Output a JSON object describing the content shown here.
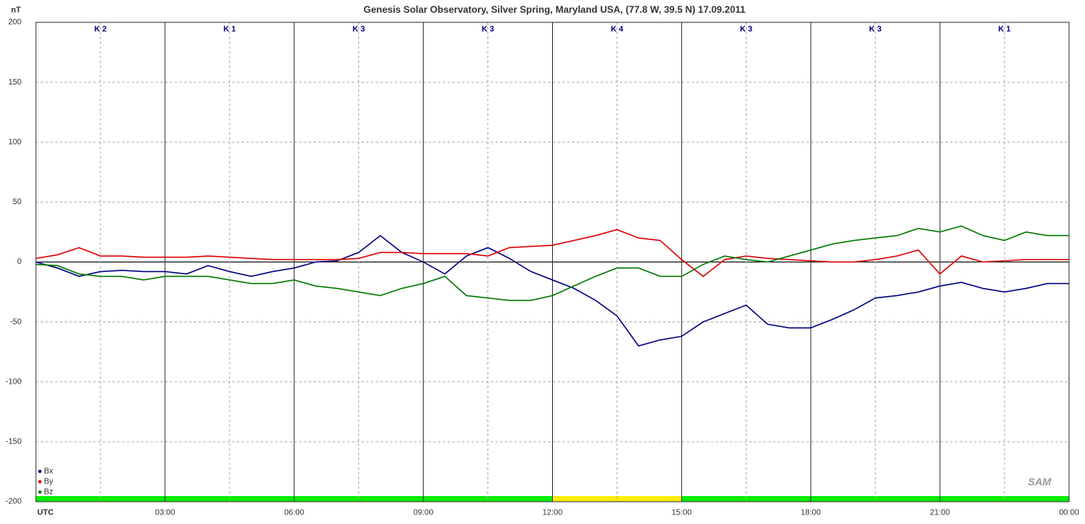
{
  "chart_data": {
    "type": "line",
    "title": "Genesis Solar Observatory, Silver Spring, Maryland USA, (77.8 W, 39.5 N)  17.09.2011",
    "y_label": "nT",
    "logo": "SAM",
    "xlim": [
      0,
      24
    ],
    "ylim": [
      -200,
      200
    ],
    "xticks": [
      {
        "value": 0,
        "label": "UTC"
      },
      {
        "value": 3,
        "label": "03:00"
      },
      {
        "value": 6,
        "label": "06:00"
      },
      {
        "value": 9,
        "label": "09:00"
      },
      {
        "value": 12,
        "label": "12:00"
      },
      {
        "value": 15,
        "label": "15:00"
      },
      {
        "value": 18,
        "label": "18:00"
      },
      {
        "value": 21,
        "label": "21:00"
      },
      {
        "value": 24,
        "label": "00:00"
      }
    ],
    "yticks": [
      200,
      150,
      100,
      50,
      0,
      -50,
      -100,
      -150,
      -200
    ],
    "grid": true,
    "legend": "lower left",
    "k_index": {
      "labels": [
        "K 2",
        "K 1",
        "K 3",
        "K 3",
        "K 4",
        "K 3",
        "K 3",
        "K 1"
      ],
      "colors": [
        "#00ee00",
        "#00ee00",
        "#00ee00",
        "#00ee00",
        "#ffee00",
        "#00ee00",
        "#00ee00",
        "#00ee00"
      ]
    },
    "x": [
      0,
      0.5,
      1,
      1.5,
      2,
      2.5,
      3,
      3.5,
      4,
      4.5,
      5,
      5.5,
      6,
      6.5,
      7,
      7.5,
      8,
      8.5,
      9,
      9.5,
      10,
      10.5,
      11,
      11.5,
      12,
      12.5,
      13,
      13.5,
      14,
      14.5,
      15,
      15.5,
      16,
      16.5,
      17,
      17.5,
      18,
      18.5,
      19,
      19.5,
      20,
      20.5,
      21,
      21.5,
      22,
      22.5,
      23,
      23.5,
      24
    ],
    "series": [
      {
        "name": "Bx",
        "color": "#000080",
        "values": [
          0,
          -5,
          -12,
          -8,
          -7,
          -8,
          -8,
          -10,
          -3,
          -8,
          -12,
          -8,
          -5,
          0,
          1,
          8,
          22,
          8,
          0,
          -10,
          5,
          12,
          3,
          -8,
          -15,
          -22,
          -32,
          -45,
          -70,
          -65,
          -62,
          -50,
          -43,
          -36,
          -52,
          -55,
          -55,
          -48,
          -40,
          -30,
          -28,
          -25,
          -20,
          -17,
          -22,
          -25,
          -22,
          -18,
          -18
        ]
      },
      {
        "name": "By",
        "color": "#dd0000",
        "values": [
          3,
          6,
          12,
          5,
          5,
          4,
          4,
          4,
          5,
          4,
          3,
          2,
          2,
          2,
          2,
          3,
          8,
          8,
          7,
          7,
          7,
          5,
          12,
          13,
          14,
          18,
          22,
          27,
          20,
          18,
          2,
          -12,
          2,
          5,
          3,
          2,
          1,
          0,
          0,
          2,
          5,
          10,
          -10,
          5,
          0,
          1,
          2,
          2,
          2
        ]
      },
      {
        "name": "Bz",
        "color": "#007700",
        "values": [
          -2,
          -3,
          -10,
          -12,
          -12,
          -15,
          -12,
          -12,
          -12,
          -15,
          -18,
          -18,
          -15,
          -20,
          -22,
          -25,
          -28,
          -22,
          -18,
          -12,
          -28,
          -30,
          -32,
          -32,
          -28,
          -20,
          -12,
          -5,
          -5,
          -12,
          -12,
          -2,
          5,
          2,
          0,
          5,
          10,
          15,
          18,
          20,
          22,
          28,
          25,
          30,
          22,
          18,
          25,
          22,
          22
        ]
      }
    ]
  }
}
